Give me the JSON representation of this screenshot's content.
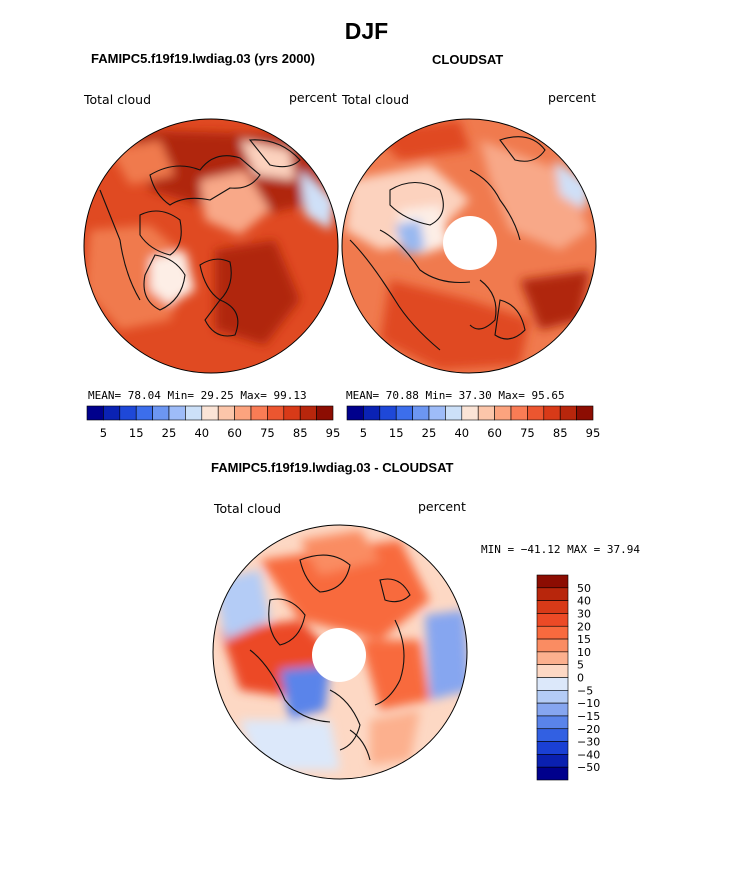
{
  "figure": {
    "season": "DJF",
    "diff_title": "FAMIPC5.f19f19.lwdiag.03 - CLOUDSAT"
  },
  "panels": [
    {
      "title": "FAMIPC5.f19f19.lwdiag.03 (yrs 2000)",
      "left_label": "Total cloud",
      "right_label": "percent",
      "stats": {
        "mean_label": "MEAN=",
        "mean": "78.04",
        "min_label": "Min=",
        "min": "29.25",
        "max_label": "Max=",
        "max": "99.13"
      }
    },
    {
      "title": "CLOUDSAT",
      "left_label": "Total cloud",
      "right_label": "percent",
      "stats": {
        "mean_label": "MEAN=",
        "mean": "70.88",
        "min_label": "Min=",
        "min": "37.30",
        "max_label": "Max=",
        "max": "95.65"
      }
    }
  ],
  "diff_panel": {
    "left_label": "Total cloud",
    "right_label": "percent",
    "minmax": "MIN = −41.12 MAX =  37.94"
  },
  "colorbar_h": {
    "colors": [
      "#00008c",
      "#0a22b4",
      "#1e48d8",
      "#3c6eec",
      "#6c96f2",
      "#9ebcf8",
      "#cce0f8",
      "#fbe4d6",
      "#fcc6aa",
      "#fca37e",
      "#f97c55",
      "#ec5630",
      "#d83a18",
      "#b8260c",
      "#8c0d02"
    ],
    "tick_labels": [
      "5",
      "15",
      "25",
      "40",
      "60",
      "75",
      "85",
      "95"
    ]
  },
  "colorbar_v": {
    "colors": [
      "#8c0d02",
      "#b8260c",
      "#d83a18",
      "#ec4a26",
      "#f86a3e",
      "#fa8c62",
      "#fcb08e",
      "#fdd8c4",
      "#dce8fa",
      "#b4ccf6",
      "#86a6f0",
      "#5a84ea",
      "#3260e2",
      "#1a40d4",
      "#0a20b0",
      "#00008c"
    ],
    "tick_labels": [
      "50",
      "40",
      "30",
      "20",
      "15",
      "10",
      "5",
      "0",
      "−5",
      "−10",
      "−15",
      "−20",
      "−30",
      "−40",
      "−50"
    ]
  },
  "map_colors": {
    "deep_red": "#b02810",
    "red": "#e04a22",
    "orange": "#f07a4e",
    "salmon": "#f8a888",
    "peach": "#fcd2be",
    "pale": "#fdeee6",
    "light_blue": "#cfe0f8",
    "blue": "#98b8f0",
    "mid_blue": "#6088e4",
    "dark_blue": "#3058cc",
    "coast": "#111111"
  }
}
